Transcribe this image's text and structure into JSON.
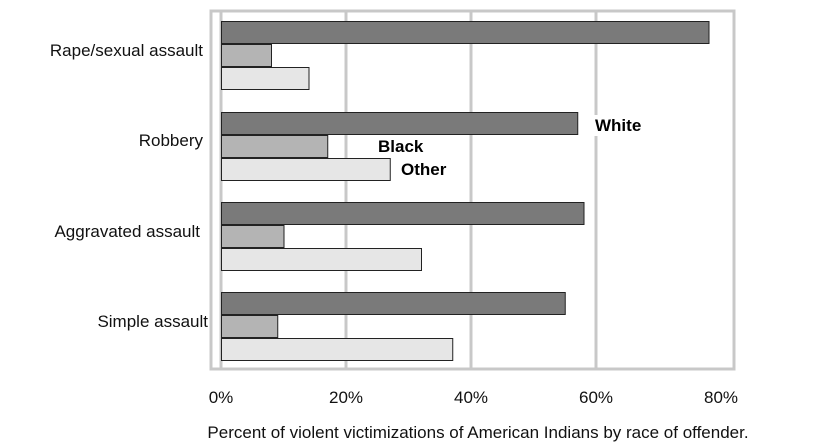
{
  "chart_data": {
    "type": "bar",
    "orientation": "horizontal",
    "categories": [
      "Rape/sexual assault",
      "Robbery",
      "Aggravated assault",
      "Simple assault"
    ],
    "series": [
      {
        "name": "White",
        "color": "#7a7a7a",
        "values": [
          78,
          57,
          58,
          55
        ]
      },
      {
        "name": "Black",
        "color": "#b4b4b4",
        "values": [
          8,
          17,
          10,
          9
        ]
      },
      {
        "name": "Other",
        "color": "#e6e6e6",
        "values": [
          14,
          27,
          32,
          37
        ]
      }
    ],
    "xlim": [
      0,
      80
    ],
    "xticks": [
      "0%",
      "20%",
      "40%",
      "60%",
      "80%"
    ],
    "xlabel": "Percent of violent victimizations of American Indians by race of offender.",
    "ylabel": "",
    "grid": true,
    "legend": "inline labels next to Robbery bars",
    "grid_color": "#c8c8c8"
  }
}
